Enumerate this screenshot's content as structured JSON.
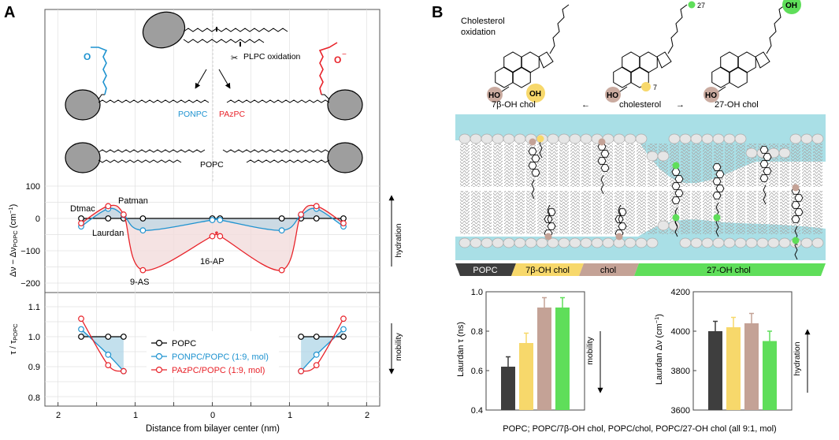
{
  "panelA": {
    "label": "A",
    "scheme": {
      "oxidation": "PLPC oxidation",
      "ponpc": "PONPC",
      "pazpc": "PAzPC",
      "popc": "POPC",
      "aldehyde_o": "O",
      "carboxyl_o": "O",
      "carboxyl_charge": "−"
    },
    "colors": {
      "popc": "#000000",
      "ponpc": "#1f93d0",
      "pazpc": "#e8232a",
      "fill_red": "#f3dcdc",
      "fill_blue": "#a9d3e6"
    },
    "top_plot": {
      "ylabel": "Δν − Δν",
      "ylabel_sub": "POPC",
      "ylabel_unit": " (cm",
      "ylabel_exp": "−1",
      "ylabel_close": ")",
      "right_label": "hydration",
      "yticks": [
        "100",
        "0",
        "−100",
        "−200"
      ],
      "probe_labels": {
        "dtmac": "Dtmac",
        "patman": "Patman",
        "laurdan": "Laurdan",
        "ap16": "16-AP",
        "as9": "9-AS"
      }
    },
    "bottom_plot": {
      "ylabel": "τ / τ",
      "ylabel_sub": "POPC",
      "right_label": "mobility",
      "yticks": [
        "1.1",
        "1.0",
        "0.9",
        "0.8"
      ],
      "legend": [
        "POPC",
        "PONPC/POPC (1:9, mol)",
        "PAzPC/POPC (1:9, mol)"
      ]
    },
    "xticks": [
      "2",
      "1",
      "0",
      "1",
      "2"
    ],
    "xlabel": "Distance from bilayer center (nm)"
  },
  "panelB": {
    "label": "B",
    "oxidation_title_1": "Cholesterol",
    "oxidation_title_2": "oxidation",
    "molecules": {
      "left": "7β-OH chol",
      "center": "cholesterol",
      "right": "27-OH chol"
    },
    "arrow_left": "←",
    "arrow_right": "→",
    "atoms": {
      "ho": "HO",
      "oh": "OH",
      "c7": "7",
      "c27": "27"
    },
    "segments": [
      "POPC",
      "7β-OH chol",
      "chol",
      "27-OH chol"
    ],
    "colors": {
      "popc": "#3e3e3e",
      "oh7": "#f7d86b",
      "chol": "#c4a296",
      "oh27": "#5fde5a",
      "water": "#a9dfe6"
    },
    "chart_left_label": "Laurdan τ (ns)",
    "chart_right_label": "Laurdan Δν (cm",
    "chart_right_exp": "−1",
    "chart_right_close": ")",
    "mobility": "mobility",
    "hydration": "hydration",
    "caption": "POPC; POPC/7β-OH chol, POPC/chol, POPC/27-OH chol (all 9:1, mol)"
  },
  "chart_data": [
    {
      "type": "line",
      "title": "",
      "xlabel": "Distance from bilayer center (nm)",
      "ylabel": "Δν − ΔνPOPC (cm−1)",
      "xlim": [
        2.2,
        -2.2
      ],
      "ylim": [
        -230,
        100
      ],
      "series": [
        {
          "name": "POPC",
          "x": [
            -1.7,
            -1.35,
            -1.15,
            -0.9,
            0,
            0.1,
            0.9,
            1.15,
            1.35,
            1.7
          ],
          "y": [
            0,
            0,
            0,
            0,
            0,
            0,
            0,
            0,
            0,
            0
          ]
        },
        {
          "name": "PONPC/POPC (1:9, mol)",
          "x": [
            -1.7,
            -1.35,
            -1.15,
            -0.9,
            0,
            0.1,
            0.9,
            1.15,
            1.35,
            1.7
          ],
          "y": [
            -25,
            30,
            10,
            -37,
            -5,
            -5,
            -37,
            10,
            30,
            -25
          ]
        },
        {
          "name": "PAzPC/POPC (1:9, mol)",
          "x": [
            -1.7,
            -1.35,
            -1.15,
            -0.9,
            0,
            0.1,
            0.9,
            1.15,
            1.35,
            1.7
          ],
          "y": [
            -15,
            38,
            12,
            -160,
            -55,
            -55,
            -160,
            12,
            38,
            -15
          ]
        }
      ]
    },
    {
      "type": "line",
      "title": "",
      "xlabel": "Distance from bilayer center (nm)",
      "ylabel": "τ / τPOPC",
      "xlim": [
        2.2,
        -2.2
      ],
      "ylim": [
        0.78,
        1.13
      ],
      "series": [
        {
          "name": "POPC",
          "x": [
            -1.7,
            -1.35,
            -1.15,
            1.15,
            1.35,
            1.7
          ],
          "y": [
            1.0,
            1.0,
            1.0,
            1.0,
            1.0,
            1.0
          ]
        },
        {
          "name": "PONPC/POPC (1:9, mol)",
          "x": [
            -1.7,
            -1.35,
            -1.15,
            1.15,
            1.35,
            1.7
          ],
          "y": [
            1.025,
            0.94,
            0.885,
            0.885,
            0.94,
            1.025
          ]
        },
        {
          "name": "PAzPC/POPC (1:9, mol)",
          "x": [
            -1.7,
            -1.35,
            -1.15,
            1.15,
            1.35,
            1.7
          ],
          "y": [
            1.06,
            0.905,
            0.885,
            0.885,
            0.905,
            1.06
          ]
        }
      ]
    },
    {
      "type": "bar",
      "title": "",
      "ylabel": "Laurdan τ (ns)",
      "ylim": [
        0.4,
        1.0
      ],
      "yticks": [
        0.4,
        0.6,
        0.8,
        1.0
      ],
      "categories": [
        "POPC",
        "POPC/7β-OH chol",
        "POPC/chol",
        "POPC/27-OH chol"
      ],
      "values": [
        0.62,
        0.74,
        0.92,
        0.92
      ],
      "errors": [
        0.05,
        0.05,
        0.05,
        0.05
      ],
      "colors": [
        "#3e3e3e",
        "#f7d86b",
        "#c4a296",
        "#5fde5a"
      ]
    },
    {
      "type": "bar",
      "title": "",
      "ylabel": "Laurdan Δν (cm−1)",
      "ylim": [
        3600,
        4200
      ],
      "yticks": [
        3600,
        3800,
        4000,
        4200
      ],
      "categories": [
        "POPC",
        "POPC/7β-OH chol",
        "POPC/chol",
        "POPC/27-OH chol"
      ],
      "values": [
        4000,
        4020,
        4040,
        3950
      ],
      "errors": [
        50,
        50,
        50,
        50
      ],
      "colors": [
        "#3e3e3e",
        "#f7d86b",
        "#c4a296",
        "#5fde5a"
      ]
    }
  ]
}
